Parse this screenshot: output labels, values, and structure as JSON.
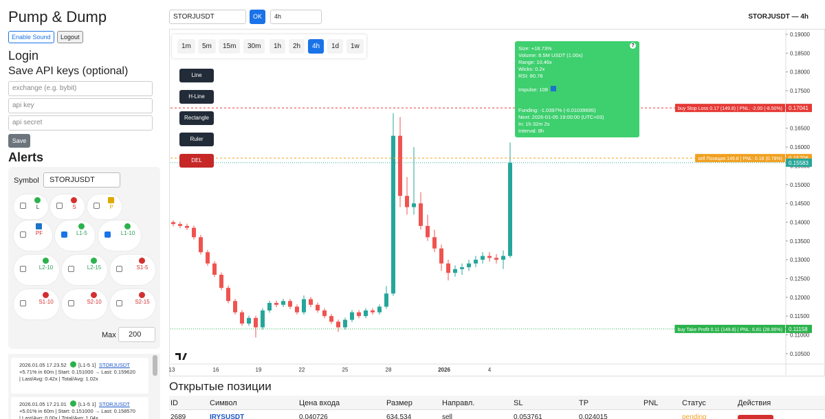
{
  "header": {
    "title": "Pump & Dump",
    "buttons": [
      "Enable Sound",
      "Logout"
    ]
  },
  "login": {
    "title": "Login",
    "subtitle": "Save API keys (optional)",
    "placeholders": [
      "exchange (e.g. bybit)",
      "api key",
      "api secret"
    ],
    "save": "Save"
  },
  "alerts": {
    "title": "Alerts",
    "symbol_label": "Symbol",
    "symbol": "STORJUSDT",
    "max_label": "Max",
    "max": 200,
    "tiles": [
      {
        "label": "L",
        "checked": false,
        "color": "#2bb24c",
        "label_color": "#333"
      },
      {
        "label": "S",
        "checked": false,
        "color": "#d32f2f",
        "label_color": "#d32f2f"
      },
      {
        "label": "P",
        "checked": false,
        "color": "#e0a800",
        "label_color": "#e0a800"
      },
      {
        "label": "PF",
        "checked": false,
        "color": "#1e73c8",
        "label_color": "#d32f2f"
      },
      {
        "label": "L1-5",
        "checked": true,
        "color": "#2bb24c",
        "label_color": "#2a9d5a"
      },
      {
        "label": "L1-10",
        "checked": true,
        "color": "#2bb24c",
        "label_color": "#2a9d5a"
      },
      {
        "label": "L2-10",
        "checked": false,
        "color": "#2bb24c",
        "label_color": "#2a9d5a"
      },
      {
        "label": "L2-15",
        "checked": false,
        "color": "#2bb24c",
        "label_color": "#2a9d5a"
      },
      {
        "label": "S1-5",
        "checked": false,
        "color": "#d32f2f",
        "label_color": "#d32f2f"
      },
      {
        "label": "S1-10",
        "checked": false,
        "color": "#d32f2f",
        "label_color": "#d32f2f"
      },
      {
        "label": "S2-10",
        "checked": false,
        "color": "#d32f2f",
        "label_color": "#d32f2f"
      },
      {
        "label": "S2-15",
        "checked": false,
        "color": "#d32f2f",
        "label_color": "#d32f2f"
      }
    ]
  },
  "log": [
    {
      "time": "2026.01.05 17.23.52",
      "tag": "[L1-5 1]",
      "symbol": "STORJUSDT",
      "line1": "+5.71% in 60m | Start: 0.151000 → Last: 0.159620",
      "line2": "| Last/Avg: 0.42x | Total/Avg: 1.02x"
    },
    {
      "time": "2026.01.05 17.21.01",
      "tag": "[L1-5 1]",
      "symbol": "STORJUSDT",
      "line1": "+5.01% in 60m | Start: 0.151000 → Last: 0.158570",
      "line2": "| Last/Avg: 0.00x | Total/Avg: 1.04x"
    }
  ],
  "toolbar": {
    "symbol": "STORJUSDT",
    "ok": "OK",
    "interval": "4h",
    "title": "STORJUSDT — 4h"
  },
  "timeframes": {
    "items": [
      "1m",
      "5m",
      "15m",
      "30m",
      "1h",
      "2h",
      "4h",
      "1d",
      "1w"
    ],
    "active": 6
  },
  "tools": [
    "Line",
    "H-Line",
    "Rectangle",
    "Ruler",
    "DEL"
  ],
  "tooltip": {
    "lines1": [
      "Size: +18.73%",
      "Volume: 8.5M USDT (1.00x)",
      "Range: 10.46x",
      "Wicks: 0.2x",
      "RSI: 80.78"
    ],
    "impulse": "Impulse: 108",
    "lines2": [
      "Funding: -1.0397% (-0.01039695)",
      "Next: 2026-01-05 19:00:00 (UTC+03)",
      "In: 1h 32m 2s",
      "Interval: 8h"
    ]
  },
  "chart_data": {
    "type": "candlestick",
    "up_color": "#26a69a",
    "down_color": "#ef5350",
    "ylim": [
      0.0993,
      0.1911
    ],
    "yticks": [
      {
        "value": 0.19,
        "label": "0.19000"
      },
      {
        "value": 0.185,
        "label": "0.18500"
      },
      {
        "value": 0.18,
        "label": "0.18000"
      },
      {
        "value": 0.175,
        "label": "0.17500"
      },
      {
        "value": 0.17,
        "label": "0.17000"
      },
      {
        "value": 0.165,
        "label": "0.16500"
      },
      {
        "value": 0.16,
        "label": "0.16000"
      },
      {
        "value": 0.155,
        "label": "0.15500"
      },
      {
        "value": 0.15,
        "label": "0.15000"
      },
      {
        "value": 0.145,
        "label": "0.14500"
      },
      {
        "value": 0.14,
        "label": "0.14000"
      },
      {
        "value": 0.135,
        "label": "0.13500"
      },
      {
        "value": 0.13,
        "label": "0.13000"
      },
      {
        "value": 0.125,
        "label": "0.12500"
      },
      {
        "value": 0.12,
        "label": "0.12000"
      },
      {
        "value": 0.115,
        "label": "0.11500"
      },
      {
        "value": 0.11,
        "label": "0.11000"
      },
      {
        "value": 0.105,
        "label": "0.10500"
      }
    ],
    "xticks": [
      "13",
      "16",
      "19",
      "22",
      "25",
      "28",
      "2026",
      "4"
    ],
    "candles": [
      [
        0.14,
        0.1405,
        0.1389,
        0.1395
      ],
      [
        0.1395,
        0.1401,
        0.1384,
        0.139
      ],
      [
        0.139,
        0.1396,
        0.1379,
        0.1385
      ],
      [
        0.1385,
        0.1391,
        0.1354,
        0.136
      ],
      [
        0.136,
        0.1366,
        0.1314,
        0.132
      ],
      [
        0.132,
        0.1326,
        0.1284,
        0.129
      ],
      [
        0.129,
        0.1296,
        0.1254,
        0.126
      ],
      [
        0.126,
        0.1266,
        0.1219,
        0.1225
      ],
      [
        0.1225,
        0.1231,
        0.1184,
        0.119
      ],
      [
        0.119,
        0.1196,
        0.1154,
        0.116
      ],
      [
        0.116,
        0.1166,
        0.1124,
        0.113
      ],
      [
        0.113,
        0.1151,
        0.1124,
        0.1145
      ],
      [
        0.1145,
        0.1151,
        0.1093,
        0.112
      ],
      [
        0.112,
        0.1171,
        0.1114,
        0.1165
      ],
      [
        0.1165,
        0.1191,
        0.1159,
        0.1185
      ],
      [
        0.1185,
        0.1191,
        0.1174,
        0.118
      ],
      [
        0.118,
        0.1196,
        0.1174,
        0.119
      ],
      [
        0.119,
        0.1196,
        0.1169,
        0.1175
      ],
      [
        0.1175,
        0.1181,
        0.1154,
        0.116
      ],
      [
        0.116,
        0.1205,
        0.1154,
        0.1195
      ],
      [
        0.1195,
        0.1201,
        0.1174,
        0.118
      ],
      [
        0.118,
        0.1186,
        0.1159,
        0.1165
      ],
      [
        0.1165,
        0.1171,
        0.1144,
        0.115
      ],
      [
        0.115,
        0.1156,
        0.1129,
        0.1135
      ],
      [
        0.1135,
        0.1141,
        0.1108,
        0.112
      ],
      [
        0.112,
        0.1146,
        0.1114,
        0.114
      ],
      [
        0.114,
        0.1166,
        0.1134,
        0.116
      ],
      [
        0.116,
        0.1166,
        0.1144,
        0.115
      ],
      [
        0.115,
        0.1171,
        0.1144,
        0.1165
      ],
      [
        0.1165,
        0.1171,
        0.1154,
        0.116
      ],
      [
        0.116,
        0.1181,
        0.1154,
        0.1175
      ],
      [
        0.1175,
        0.123,
        0.1169,
        0.121
      ],
      [
        0.121,
        0.169,
        0.1204,
        0.163
      ],
      [
        0.163,
        0.168,
        0.144,
        0.147
      ],
      [
        0.147,
        0.152,
        0.142,
        0.144
      ],
      [
        0.144,
        0.16,
        0.142,
        0.145
      ],
      [
        0.145,
        0.148,
        0.138,
        0.139
      ],
      [
        0.139,
        0.142,
        0.135,
        0.136
      ],
      [
        0.136,
        0.138,
        0.132,
        0.133
      ],
      [
        0.133,
        0.134,
        0.127,
        0.129
      ],
      [
        0.129,
        0.13,
        0.1245,
        0.1265
      ],
      [
        0.1265,
        0.1285,
        0.1255,
        0.1275
      ],
      [
        0.1275,
        0.129,
        0.126,
        0.128
      ],
      [
        0.128,
        0.13,
        0.127,
        0.129
      ],
      [
        0.129,
        0.131,
        0.128,
        0.13
      ],
      [
        0.13,
        0.132,
        0.129,
        0.131
      ],
      [
        0.131,
        0.132,
        0.1295,
        0.1305
      ],
      [
        0.1305,
        0.1315,
        0.129,
        0.13
      ],
      [
        0.13,
        0.1325,
        0.1275,
        0.131
      ],
      [
        0.131,
        0.1612,
        0.1305,
        0.1558
      ]
    ],
    "price_lines": [
      {
        "price": 0.17041,
        "text": "buy Stop Loss 0.17 (149.8) | PNL: -2.00 (-8.50%)",
        "color": "#e53935",
        "dash": "3,3"
      },
      {
        "price": 0.15706,
        "text": "sell Позиция 149.8 | PNL: 0.18 (0.78%)",
        "color": "#f0a020",
        "dash": "3,3"
      },
      {
        "price": 0.15583,
        "color": "#26a69a",
        "dash": "1,2"
      },
      {
        "price": 0.11158,
        "text": "buy Take Profit 0.11 (149.8) | PNL: 6.81 (28.95%)",
        "color": "#2bb24c",
        "dash": "1,2"
      }
    ]
  },
  "positions": {
    "title": "Открытые позиции",
    "columns": [
      "ID",
      "Символ",
      "Цена входа",
      "Размер",
      "Направл.",
      "SL",
      "TP",
      "PNL",
      "Статус",
      "Действия"
    ],
    "rows": [
      {
        "id": 2689,
        "symbol": "IRYSUSDT",
        "entry": 0.040726,
        "size": 634.534,
        "side": "sell",
        "sl": 0.053761,
        "tp": 0.024015,
        "status": "pending"
      }
    ]
  }
}
